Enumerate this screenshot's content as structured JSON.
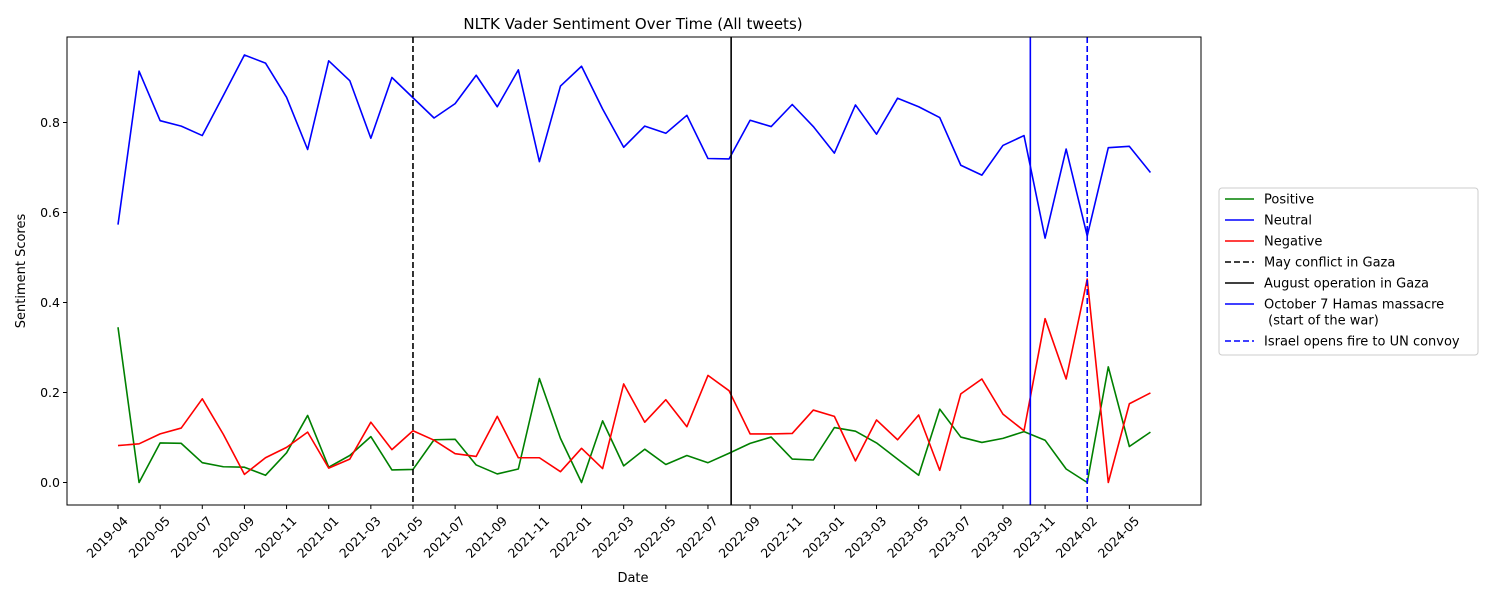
{
  "chart_data": {
    "type": "line",
    "title": "NLTK Vader Sentiment Over Time (All tweets)",
    "xlabel": "Date",
    "ylabel": "Sentiment Scores",
    "ylim": [
      -0.05,
      0.99
    ],
    "xtick_labels": [
      "2019-04",
      "2020-05",
      "2020-07",
      "2020-09",
      "2020-11",
      "2021-01",
      "2021-03",
      "2021-05",
      "2021-07",
      "2021-09",
      "2021-11",
      "2022-01",
      "2022-03",
      "2022-05",
      "2022-07",
      "2022-09",
      "2022-11",
      "2023-01",
      "2023-03",
      "2023-05",
      "2023-07",
      "2023-09",
      "2023-11",
      "2024-02",
      "2024-05"
    ],
    "ytick_labels": [
      "0.0",
      "0.2",
      "0.4",
      "0.6",
      "0.8"
    ],
    "yticks": [
      0,
      0.2,
      0.4,
      0.6,
      0.8
    ],
    "grid": false,
    "legend_position": "outside right",
    "series": [
      {
        "name": "Positive",
        "color": "#008000",
        "values": [
          0.345,
          0.0,
          0.088,
          0.087,
          0.044,
          0.035,
          0.034,
          0.016,
          0.066,
          0.149,
          0.034,
          0.06,
          0.102,
          0.028,
          0.029,
          0.095,
          0.096,
          0.039,
          0.019,
          0.03,
          0.231,
          0.098,
          0.0,
          0.137,
          0.037,
          0.074,
          0.04,
          0.06,
          0.044,
          0.065,
          0.087,
          0.101,
          0.052,
          0.05,
          0.122,
          0.114,
          0.088,
          0.052,
          0.016,
          0.163,
          0.101,
          0.089,
          0.098,
          0.113,
          0.094,
          0.03,
          0.0,
          0.257,
          0.08,
          0.112
        ]
      },
      {
        "name": "Neutral",
        "color": "#0000ff",
        "values": [
          0.573,
          0.914,
          0.804,
          0.792,
          0.771,
          0.86,
          0.95,
          0.932,
          0.856,
          0.74,
          0.937,
          0.893,
          0.765,
          0.9,
          0.855,
          0.81,
          0.842,
          0.905,
          0.835,
          0.917,
          0.713,
          0.881,
          0.925,
          0.83,
          0.745,
          0.792,
          0.776,
          0.816,
          0.72,
          0.719,
          0.805,
          0.791,
          0.84,
          0.791,
          0.732,
          0.839,
          0.774,
          0.854,
          0.835,
          0.811,
          0.705,
          0.683,
          0.749,
          0.771,
          0.543,
          0.741,
          0.548,
          0.744,
          0.747,
          0.689
        ]
      },
      {
        "name": "Negative",
        "color": "#ff0000",
        "values": [
          0.082,
          0.086,
          0.108,
          0.121,
          0.186,
          0.107,
          0.018,
          0.055,
          0.078,
          0.112,
          0.032,
          0.052,
          0.134,
          0.073,
          0.115,
          0.094,
          0.064,
          0.058,
          0.147,
          0.055,
          0.055,
          0.024,
          0.076,
          0.031,
          0.219,
          0.134,
          0.184,
          0.124,
          0.238,
          0.204,
          0.108,
          0.108,
          0.109,
          0.161,
          0.147,
          0.048,
          0.139,
          0.095,
          0.15,
          0.027,
          0.197,
          0.23,
          0.152,
          0.115,
          0.364,
          0.23,
          0.452,
          0.0,
          0.175,
          0.199
        ]
      }
    ],
    "events": [
      {
        "name": "May conflict in Gaza",
        "index": 14,
        "color": "#000000",
        "style": "dashed"
      },
      {
        "name": "August operation in Gaza",
        "index": 29.1,
        "color": "#000000",
        "style": "solid"
      },
      {
        "name": "October 7 Hamas massacre\n (start of the war)",
        "index": 43.3,
        "color": "#0000ff",
        "style": "solid"
      },
      {
        "name": "Israel opens fire to UN convoy",
        "index": 46.0,
        "color": "#0000ff",
        "style": "dashed"
      }
    ]
  }
}
